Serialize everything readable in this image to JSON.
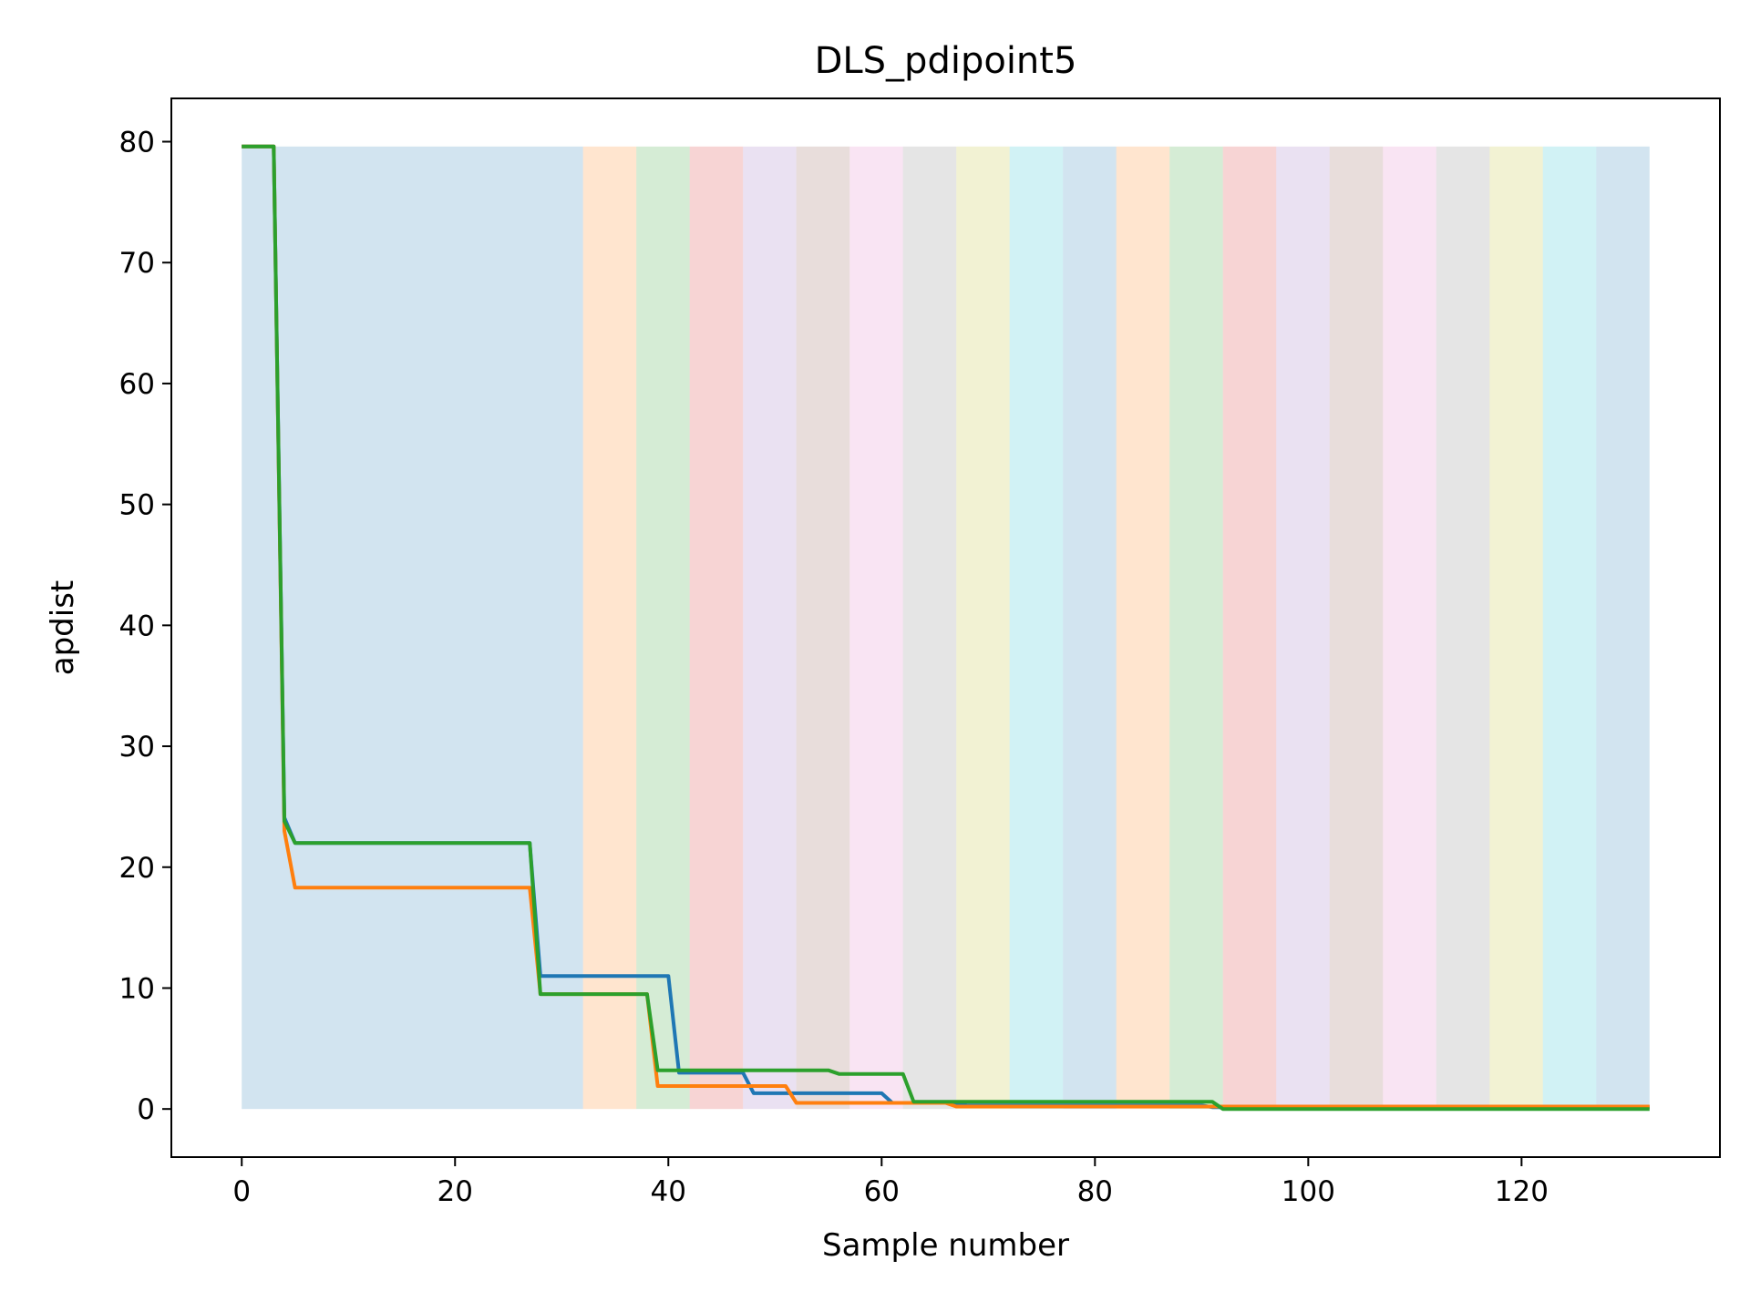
{
  "chart_data": {
    "type": "line",
    "title": "DLS_pdipoint5",
    "xlabel": "Sample number",
    "ylabel": "apdist",
    "xlim": [
      -6.6,
      138.6
    ],
    "ylim": [
      -3.98,
      83.58
    ],
    "xticks": [
      0,
      20,
      40,
      60,
      80,
      100,
      120
    ],
    "yticks": [
      0,
      10,
      20,
      30,
      40,
      50,
      60,
      70,
      80
    ],
    "grid": false,
    "legend": "none",
    "band_color_cycle": [
      "#1f77b4",
      "#ff7f0e",
      "#2ca02c",
      "#d62728",
      "#9467bd",
      "#8c564b",
      "#e377c2",
      "#7f7f7f",
      "#bcbd22",
      "#17becf"
    ],
    "band_opacity": 0.2,
    "band_y_range": [
      0,
      79.6
    ],
    "band_edges": [
      0,
      32,
      37,
      42,
      47,
      52,
      57,
      62,
      67,
      72,
      77,
      82,
      87,
      92,
      97,
      102,
      107,
      112,
      117,
      122,
      127,
      132
    ],
    "series": [
      {
        "color": "#1f77b4",
        "points": [
          [
            0,
            79.6
          ],
          [
            3,
            79.6
          ],
          [
            4,
            24.1
          ],
          [
            5,
            22.0
          ],
          [
            27,
            22.0
          ],
          [
            28,
            11.0
          ],
          [
            40,
            11.0
          ],
          [
            41,
            3.0
          ],
          [
            47,
            3.0
          ],
          [
            48,
            1.3
          ],
          [
            60,
            1.3
          ],
          [
            61,
            0.5
          ],
          [
            67,
            0.5
          ],
          [
            68,
            0.3
          ],
          [
            90,
            0.3
          ],
          [
            91,
            0.15
          ],
          [
            132,
            0.15
          ]
        ]
      },
      {
        "color": "#ff7f0e",
        "points": [
          [
            0,
            79.6
          ],
          [
            3,
            79.6
          ],
          [
            4,
            23.0
          ],
          [
            5,
            18.3
          ],
          [
            27,
            18.3
          ],
          [
            28,
            9.5
          ],
          [
            38,
            9.5
          ],
          [
            39,
            1.9
          ],
          [
            51,
            1.9
          ],
          [
            52,
            0.5
          ],
          [
            66,
            0.5
          ],
          [
            67,
            0.2
          ],
          [
            132,
            0.2
          ]
        ]
      },
      {
        "color": "#2ca02c",
        "points": [
          [
            0,
            79.6
          ],
          [
            3,
            79.6
          ],
          [
            4,
            23.8
          ],
          [
            5,
            22.0
          ],
          [
            27,
            22.0
          ],
          [
            28,
            9.5
          ],
          [
            38,
            9.5
          ],
          [
            39,
            3.2
          ],
          [
            55,
            3.2
          ],
          [
            56,
            2.9
          ],
          [
            62,
            2.9
          ],
          [
            63,
            0.6
          ],
          [
            91,
            0.6
          ],
          [
            92,
            0.0
          ],
          [
            132,
            0.0
          ]
        ]
      }
    ]
  }
}
